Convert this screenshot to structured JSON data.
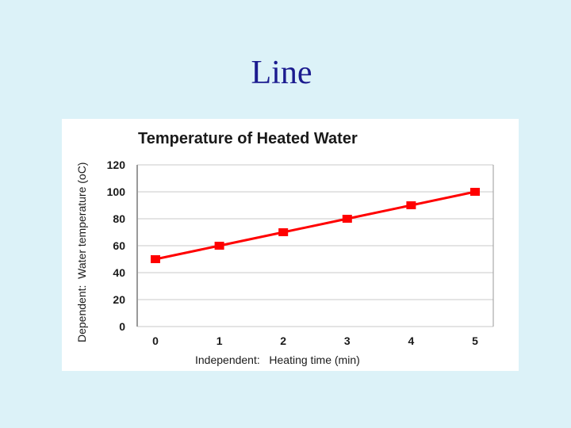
{
  "slide": {
    "title": "Line"
  },
  "chart_data": {
    "type": "line",
    "title": "Temperature of Heated Water",
    "xlabel": "Independent:   Heating time (min)",
    "ylabel": "Dependent:  Water temperature (oC)",
    "x": [
      0,
      1,
      2,
      3,
      4,
      5
    ],
    "x_tick_labels": [
      "0",
      "1",
      "2",
      "3",
      "4",
      "5"
    ],
    "y_ticks": [
      0,
      20,
      40,
      60,
      80,
      100,
      120
    ],
    "ylim": [
      0,
      120
    ],
    "grid": true,
    "series": [
      {
        "values": [
          50,
          60,
          70,
          80,
          90,
          100
        ],
        "color": "#ff0000",
        "marker": "square"
      }
    ]
  }
}
